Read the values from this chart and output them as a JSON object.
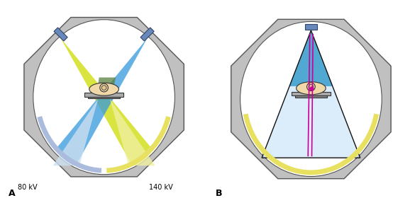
{
  "fig_width": 5.85,
  "fig_height": 2.8,
  "dpi": 100,
  "bg_color": "#ffffff",
  "label_A": "A",
  "label_B": "B",
  "text_80kV": "80 kV",
  "text_140kV": "140 kV",
  "body_fill": "#f0d8a8",
  "body_stroke": "#333333",
  "gray_ring": "#c0c0c0",
  "ring_edge": "#555555",
  "tube_fill": "#6688bb",
  "tube_edge": "#334466",
  "yellow_beam": "#d4e020",
  "blue_beam": "#3399dd",
  "green_overlap": "#5a8040",
  "light_blue": "#cce0f0",
  "light_yellow": "#f0f0a0",
  "det_blue": "#aabbdd",
  "det_yellow": "#e8e060",
  "magenta": "#cc0099",
  "blue_beam2": "#3399cc",
  "light_blue2": "#cce4f8"
}
